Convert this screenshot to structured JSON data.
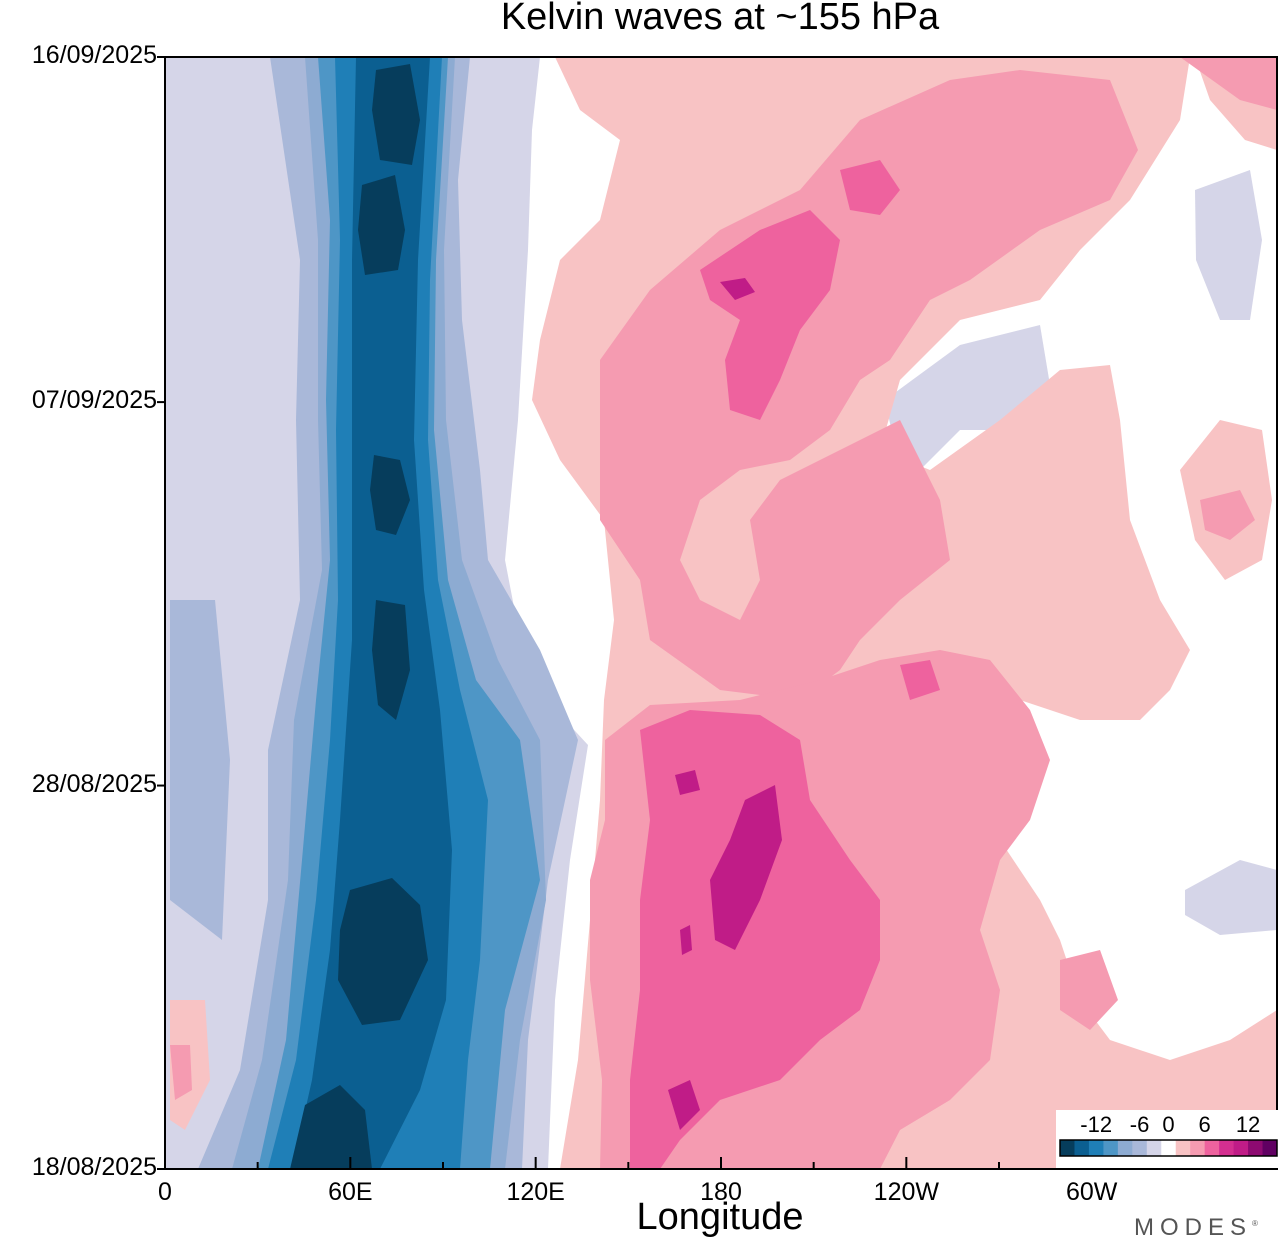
{
  "chart_data": {
    "type": "heatmap",
    "title": "Kelvin waves at ~155 hPa",
    "xlabel": "Longitude",
    "ylabel": "",
    "x_ticks": [
      "0",
      "60E",
      "120E",
      "180",
      "120W",
      "60W"
    ],
    "x_tick_values_deg_east": [
      0,
      60,
      120,
      180,
      240,
      300
    ],
    "xlim_deg_east": [
      0,
      360
    ],
    "y_ticks": [
      "16/09/2025",
      "07/09/2025",
      "28/08/2025",
      "18/08/2025"
    ],
    "y_range": [
      "18/08/2025",
      "16/09/2025"
    ],
    "colorbar": {
      "tick_labels": [
        "-12",
        "-6",
        "0",
        "6",
        "12"
      ],
      "levels": [
        -16,
        -14,
        -12,
        -10,
        -8,
        -6,
        -4,
        -2,
        2,
        4,
        6,
        8,
        10,
        12,
        14,
        16
      ],
      "colors": [
        "#063d5c",
        "#0b5f91",
        "#1f7fb7",
        "#4e96c6",
        "#8dabd2",
        "#a9b8d9",
        "#d5d5e8",
        "#ffffff",
        "#f8c3c4",
        "#f59bb1",
        "#ee629e",
        "#d42f90",
        "#c01c87",
        "#8d0a71",
        "#600062"
      ]
    },
    "note_structure": "negative (blue) band near 60E–100E descending over the period; positive (pink) region 150E–120W migrating eastward"
  },
  "branding": "MODES"
}
